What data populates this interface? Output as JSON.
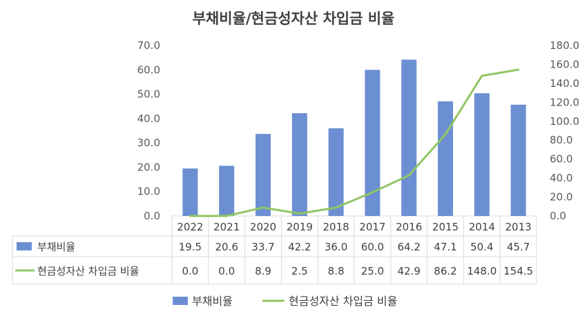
{
  "chart_data": {
    "type": "bar",
    "title": "부채비율/현금성자산 차입금 비율",
    "categories": [
      "2022",
      "2021",
      "2020",
      "2019",
      "2018",
      "2017",
      "2016",
      "2015",
      "2014",
      "2013"
    ],
    "series": [
      {
        "name": "부채비율",
        "type": "bar",
        "axis": "left",
        "color": "#6b8fd2",
        "values": [
          19.5,
          20.6,
          33.7,
          42.2,
          36.0,
          60.0,
          64.2,
          47.1,
          50.4,
          45.7
        ],
        "labels": [
          "19.5",
          "20.6",
          "33.7",
          "42.2",
          "36.0",
          "60.0",
          "64.2",
          "47.1",
          "50.4",
          "45.7"
        ]
      },
      {
        "name": "현금성자산 차입금 비율",
        "type": "line",
        "axis": "right",
        "color": "#92c564",
        "values": [
          0.0,
          0.0,
          8.9,
          2.5,
          8.8,
          25.0,
          42.9,
          86.2,
          148.0,
          154.5
        ],
        "labels": [
          "0.0",
          "0.0",
          "8.9",
          "2.5",
          "8.8",
          "25.0",
          "42.9",
          "86.2",
          "148.0",
          "154.5"
        ]
      }
    ],
    "y_left": {
      "ylim": [
        0,
        70
      ],
      "ticks": [
        "0.0",
        "10.0",
        "20.0",
        "30.0",
        "40.0",
        "50.0",
        "60.0",
        "70.0"
      ]
    },
    "y_right": {
      "ylim": [
        0,
        180
      ],
      "ticks": [
        "0.0",
        "20.0",
        "40.0",
        "60.0",
        "80.0",
        "100.0",
        "120.0",
        "140.0",
        "160.0",
        "180.0"
      ]
    },
    "grid": false,
    "legend": "bottom",
    "data_table": true
  }
}
